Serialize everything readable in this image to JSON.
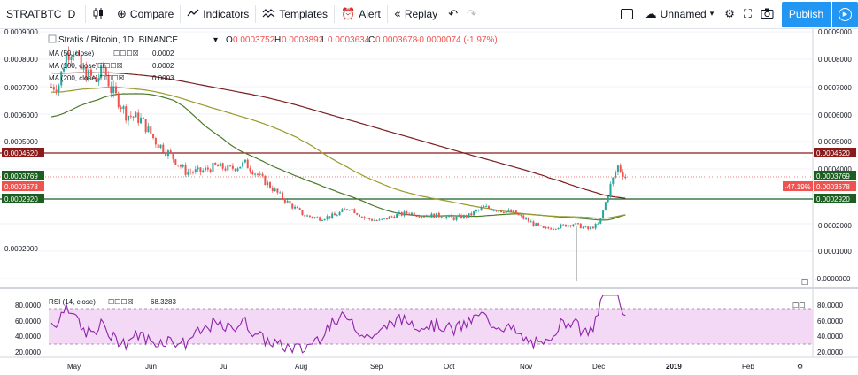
{
  "toolbar": {
    "symbol": "STRATBTC",
    "interval": "D",
    "compare_label": "Compare",
    "indicators_label": "Indicators",
    "templates_label": "Templates",
    "alert_label": "Alert",
    "replay_label": "Replay",
    "layout_name": "Unnamed",
    "publish_label": "Publish"
  },
  "legend": {
    "title": "Stratis / Bitcoin, 1D, BINANCE",
    "open_label": "O",
    "open": "0.0003752",
    "high_label": "H",
    "high": "0.0003892",
    "low_label": "L",
    "low": "0.0003634",
    "close_label": "C",
    "close": "0.0003678",
    "change": "-0.0000074 (-1.97%)",
    "indicators": [
      {
        "label": "MA (50, close)",
        "value": "0.0002",
        "color": "#4a7a2a"
      },
      {
        "label": "MA (100, close)",
        "value": "0.0002",
        "color": "#9a9a2a"
      },
      {
        "label": "MA (200, close)",
        "value": "0.0003",
        "color": "#7b1e1e"
      }
    ]
  },
  "price_axis": {
    "ticks": [
      "0.0009000",
      "0.0008000",
      "0.0007000",
      "0.0006000",
      "0.0005000",
      "0.0004000",
      "0.0003000",
      "0.0002000",
      "0.0001000",
      "-0.0000000"
    ],
    "left_tags": [
      "0.0004620",
      "0.0003769",
      "0.0003678",
      "0.0002920"
    ],
    "right_tags": [
      "0.0004620",
      "0.0003769",
      "0.0003678",
      "0.0002920"
    ],
    "pct_tag": "-47.19%"
  },
  "rsi": {
    "label": "RSI (14, close)",
    "value": "68.3283",
    "ticks": [
      "80.0000",
      "60.0000",
      "40.0000",
      "20.0000"
    ],
    "right_ticks": [
      "80.0000",
      "60.0000",
      "40.0000",
      "20.0000"
    ]
  },
  "time_axis": {
    "labels": [
      "May",
      "Jun",
      "Jul",
      "Aug",
      "Sep",
      "Oct",
      "Nov",
      "Dec",
      "2019",
      "Feb"
    ]
  },
  "colors": {
    "up": "#26a69a",
    "down": "#ef5350",
    "ma50": "#4a7a2a",
    "ma100": "#9a9a2a",
    "ma200": "#7b1e1e",
    "hline_red": "#8b1a1a",
    "hline_green": "#1b5e20",
    "rsi_line": "#8e24aa",
    "rsi_band": "#f3d9f5",
    "accent": "#2196f3"
  },
  "chart_data": {
    "type": "candlestick",
    "symbol": "STRATBTC",
    "exchange": "BINANCE",
    "timeframe": "1D",
    "last_ohlc": {
      "open": 0.0003752,
      "high": 0.0003892,
      "low": 0.0003634,
      "close": 0.0003678
    },
    "ylim": [
      0,
      0.0009
    ],
    "horizontal_lines": [
      0.000462,
      0.000292
    ],
    "x_months": [
      "May",
      "Jun",
      "Jul",
      "Aug",
      "Sep",
      "Oct",
      "Nov",
      "Dec",
      "2019",
      "Feb"
    ],
    "close_path": [
      {
        "m": 0.0,
        "v": 0.0007
      },
      {
        "m": 0.1,
        "v": 0.00071
      },
      {
        "m": 0.2,
        "v": 0.00082
      },
      {
        "m": 0.3,
        "v": 0.00084
      },
      {
        "m": 0.4,
        "v": 0.00076
      },
      {
        "m": 0.5,
        "v": 0.00074
      },
      {
        "m": 0.6,
        "v": 0.00072
      },
      {
        "m": 0.7,
        "v": 0.00077
      },
      {
        "m": 0.8,
        "v": 0.00069
      },
      {
        "m": 0.9,
        "v": 0.00065
      },
      {
        "m": 1.0,
        "v": 0.0006
      },
      {
        "m": 1.2,
        "v": 0.00058
      },
      {
        "m": 1.4,
        "v": 0.0005
      },
      {
        "m": 1.6,
        "v": 0.00045
      },
      {
        "m": 1.8,
        "v": 0.00039
      },
      {
        "m": 2.0,
        "v": 0.00039
      },
      {
        "m": 2.2,
        "v": 0.00041
      },
      {
        "m": 2.4,
        "v": 0.0004
      },
      {
        "m": 2.6,
        "v": 0.00042
      },
      {
        "m": 2.8,
        "v": 0.00037
      },
      {
        "m": 3.0,
        "v": 0.00032
      },
      {
        "m": 3.2,
        "v": 0.00027
      },
      {
        "m": 3.4,
        "v": 0.00023
      },
      {
        "m": 3.6,
        "v": 0.00022
      },
      {
        "m": 3.8,
        "v": 0.00023
      },
      {
        "m": 4.0,
        "v": 0.00026
      },
      {
        "m": 4.2,
        "v": 0.00022
      },
      {
        "m": 4.4,
        "v": 0.00021
      },
      {
        "m": 4.6,
        "v": 0.00023
      },
      {
        "m": 4.8,
        "v": 0.00024
      },
      {
        "m": 5.0,
        "v": 0.00023
      },
      {
        "m": 5.2,
        "v": 0.00023
      },
      {
        "m": 5.4,
        "v": 0.00022
      },
      {
        "m": 5.6,
        "v": 0.00023
      },
      {
        "m": 5.8,
        "v": 0.00026
      },
      {
        "m": 6.0,
        "v": 0.00025
      },
      {
        "m": 6.2,
        "v": 0.00024
      },
      {
        "m": 6.4,
        "v": 0.00021
      },
      {
        "m": 6.6,
        "v": 0.00018
      },
      {
        "m": 6.8,
        "v": 0.00019
      },
      {
        "m": 7.0,
        "v": 0.0002
      },
      {
        "m": 7.2,
        "v": 0.00018
      },
      {
        "m": 7.35,
        "v": 0.0002
      },
      {
        "m": 7.5,
        "v": 0.00034
      },
      {
        "m": 7.6,
        "v": 0.00041
      },
      {
        "m": 7.7,
        "v": 0.00037
      }
    ],
    "rsi": {
      "value": 68.3283,
      "ylim": [
        20,
        80
      ],
      "band": [
        30,
        70
      ]
    }
  }
}
